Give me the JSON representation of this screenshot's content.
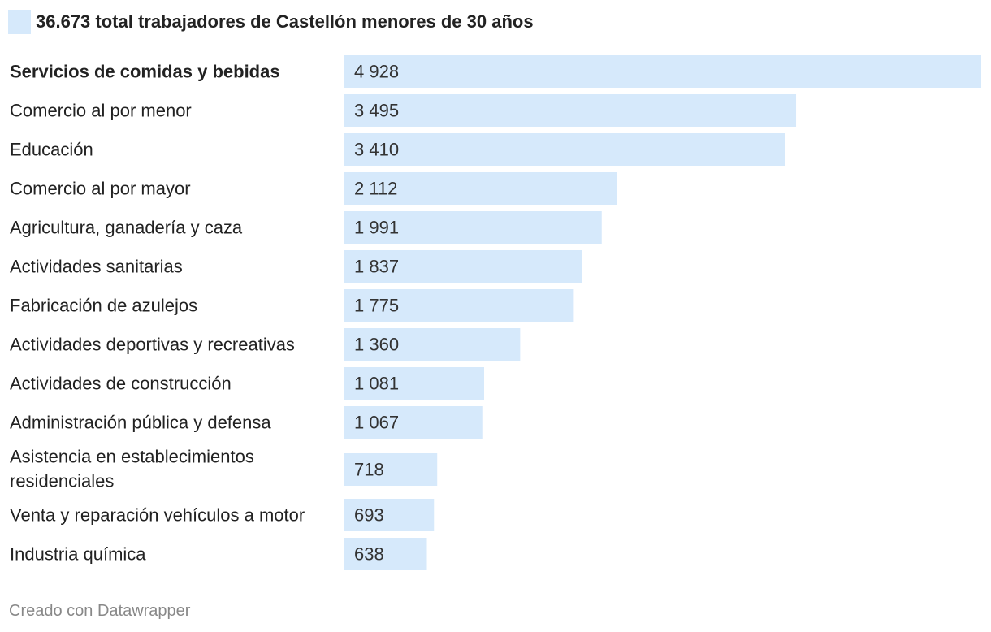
{
  "chart_data": {
    "type": "bar",
    "orientation": "horizontal",
    "legend": "36.673 total trabajadores de Castellón menores de 30 años",
    "categories": [
      "Servicios de comidas y bebidas",
      "Comercio al por menor",
      "Educación",
      "Comercio al por mayor",
      "Agricultura, ganadería y caza",
      "Actividades sanitarias",
      "Fabricación de azulejos",
      "Actividades deportivas y recreativas",
      "Actividades de construcción",
      "Administración pública y defensa",
      "Asistencia en establecimientos residenciales",
      "Venta y reparación vehículos a motor",
      "Industria química"
    ],
    "category_lines": [
      [
        "Servicios de comidas y bebidas"
      ],
      [
        "Comercio al por menor"
      ],
      [
        "Educación"
      ],
      [
        "Comercio al por mayor"
      ],
      [
        "Agricultura, ganadería y caza"
      ],
      [
        "Actividades sanitarias"
      ],
      [
        "Fabricación de azulejos"
      ],
      [
        "Actividades deportivas y recreativas"
      ],
      [
        "Actividades de construcción"
      ],
      [
        "Administración pública y defensa"
      ],
      [
        "Asistencia en establecimientos",
        "residenciales"
      ],
      [
        "Venta y reparación vehículos a motor"
      ],
      [
        "Industria química"
      ]
    ],
    "values": [
      4928,
      3495,
      3410,
      2112,
      1991,
      1837,
      1775,
      1360,
      1081,
      1067,
      718,
      693,
      638
    ],
    "value_labels": [
      "4 928",
      "3 495",
      "3 410",
      "2 112",
      "1 991",
      "1 837",
      "1 775",
      "1 360",
      "1 081",
      "1 067",
      "718",
      "693",
      "638"
    ],
    "highlight_index": 0,
    "xlim": [
      0,
      4928
    ],
    "grid": false,
    "bar_color": "#d6e9fb"
  },
  "footer": {
    "credit": "Creado con Datawrapper"
  }
}
